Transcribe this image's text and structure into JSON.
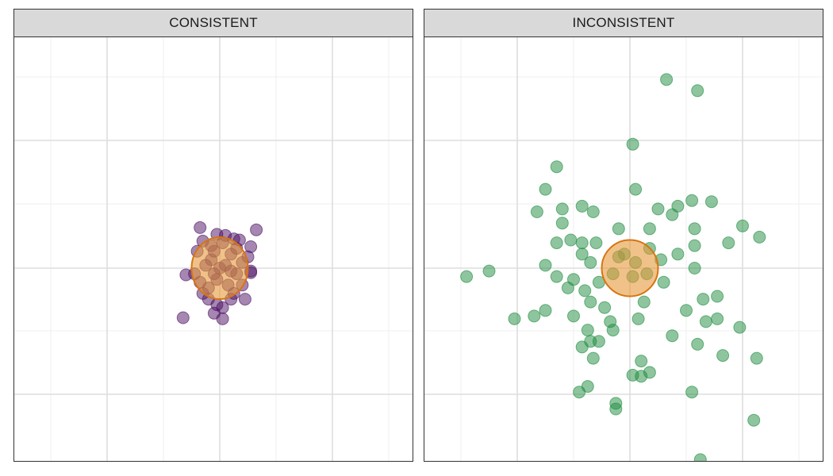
{
  "facets": [
    {
      "label": "CONSISTENT"
    },
    {
      "label": "INCONSISTENT"
    }
  ],
  "colors": {
    "consistent_points": "#4b0f63",
    "inconsistent_points": "#1e8c3e",
    "ellipse_fill": "#e69a3a",
    "ellipse_stroke": "#d67512",
    "grid_major": "#dddddd",
    "grid_minor": "#efefef",
    "strip_background": "#d9d9d9"
  },
  "chart_data": [
    {
      "type": "scatter",
      "facet": "CONSISTENT",
      "title": "",
      "xlabel": "",
      "ylabel": "",
      "xlim": [
        -2.8,
        4.3
      ],
      "ylim": [
        -3.4,
        3.3
      ],
      "grid": true,
      "point_color": "#4b0f63",
      "ellipse": {
        "cx": 0.0,
        "cy": 0.0,
        "rx": 0.5,
        "ry": 0.55
      },
      "points": [
        [
          -0.35,
          0.72
        ],
        [
          0.65,
          0.68
        ],
        [
          -0.3,
          0.48
        ],
        [
          0.25,
          0.52
        ],
        [
          -0.05,
          0.6
        ],
        [
          0.1,
          0.58
        ],
        [
          0.35,
          0.5
        ],
        [
          0.55,
          0.38
        ],
        [
          0.5,
          0.2
        ],
        [
          0.55,
          -0.05
        ],
        [
          0.55,
          -0.08
        ],
        [
          -0.6,
          -0.12
        ],
        [
          -0.45,
          -0.1
        ],
        [
          -0.1,
          0.3
        ],
        [
          0.05,
          0.45
        ],
        [
          -0.15,
          0.15
        ],
        [
          0.2,
          0.25
        ],
        [
          0.1,
          0.05
        ],
        [
          -0.25,
          0.05
        ],
        [
          0.3,
          -0.1
        ],
        [
          -0.05,
          -0.2
        ],
        [
          0.15,
          -0.3
        ],
        [
          0.4,
          -0.3
        ],
        [
          -0.2,
          -0.35
        ],
        [
          0.25,
          -0.45
        ],
        [
          -0.2,
          -0.55
        ],
        [
          0.2,
          -0.55
        ],
        [
          0.45,
          -0.55
        ],
        [
          -0.05,
          -0.65
        ],
        [
          0.05,
          -0.7
        ],
        [
          -0.1,
          -0.8
        ],
        [
          0.05,
          -0.9
        ],
        [
          -0.65,
          -0.88
        ],
        [
          -0.35,
          -0.25
        ],
        [
          -0.15,
          0.4
        ],
        [
          0.4,
          0.1
        ],
        [
          -0.4,
          0.3
        ],
        [
          0.0,
          0.0
        ],
        [
          0.2,
          -0.05
        ],
        [
          -0.1,
          -0.1
        ],
        [
          0.3,
          0.35
        ],
        [
          -0.3,
          -0.45
        ]
      ]
    },
    {
      "type": "scatter",
      "facet": "INCONSISTENT",
      "title": "",
      "xlabel": "",
      "ylabel": "",
      "xlim": [
        -3.0,
        3.5
      ],
      "ylim": [
        -3.4,
        3.3
      ],
      "grid": true,
      "point_color": "#1e8c3e",
      "ellipse": {
        "cx": 0.0,
        "cy": 0.0,
        "rx": 0.5,
        "ry": 0.5
      },
      "points": [
        [
          0.65,
          3.35
        ],
        [
          1.2,
          3.15
        ],
        [
          0.05,
          2.2
        ],
        [
          -1.3,
          1.8
        ],
        [
          -1.5,
          1.4
        ],
        [
          0.1,
          1.4
        ],
        [
          1.1,
          1.2
        ],
        [
          1.45,
          1.18
        ],
        [
          -0.85,
          1.1
        ],
        [
          -1.2,
          1.05
        ],
        [
          -1.65,
          1.0
        ],
        [
          -0.65,
          1.0
        ],
        [
          0.5,
          1.05
        ],
        [
          0.75,
          0.95
        ],
        [
          2.0,
          0.75
        ],
        [
          0.85,
          1.1
        ],
        [
          -1.2,
          0.8
        ],
        [
          -0.2,
          0.7
        ],
        [
          0.35,
          0.7
        ],
        [
          1.15,
          0.7
        ],
        [
          2.3,
          0.55
        ],
        [
          -1.3,
          0.45
        ],
        [
          -1.05,
          0.5
        ],
        [
          -0.85,
          0.45
        ],
        [
          -0.6,
          0.45
        ],
        [
          1.75,
          0.45
        ],
        [
          1.15,
          0.4
        ],
        [
          -0.85,
          0.25
        ],
        [
          0.35,
          0.35
        ],
        [
          0.85,
          0.25
        ],
        [
          -1.5,
          0.05
        ],
        [
          -1.3,
          -0.15
        ],
        [
          -0.7,
          0.1
        ],
        [
          0.55,
          0.15
        ],
        [
          1.15,
          0.0
        ],
        [
          -2.9,
          -0.15
        ],
        [
          -2.5,
          -0.05
        ],
        [
          -1.0,
          -0.2
        ],
        [
          -0.55,
          -0.25
        ],
        [
          0.6,
          -0.25
        ],
        [
          -1.1,
          -0.35
        ],
        [
          -0.8,
          -0.4
        ],
        [
          1.3,
          -0.55
        ],
        [
          1.55,
          -0.5
        ],
        [
          -0.7,
          -0.6
        ],
        [
          0.25,
          -0.6
        ],
        [
          -0.45,
          -0.7
        ],
        [
          1.0,
          -0.75
        ],
        [
          -1.5,
          -0.75
        ],
        [
          -2.05,
          -0.9
        ],
        [
          -1.7,
          -0.85
        ],
        [
          -1.0,
          -0.85
        ],
        [
          -0.35,
          -0.95
        ],
        [
          0.15,
          -0.9
        ],
        [
          1.35,
          -0.95
        ],
        [
          1.55,
          -0.9
        ],
        [
          -0.3,
          -1.1
        ],
        [
          -0.75,
          -1.1
        ],
        [
          1.95,
          -1.05
        ],
        [
          0.75,
          -1.2
        ],
        [
          -0.7,
          -1.3
        ],
        [
          -0.55,
          -1.3
        ],
        [
          1.2,
          -1.35
        ],
        [
          -0.85,
          -1.4
        ],
        [
          -0.65,
          -1.6
        ],
        [
          2.25,
          -1.6
        ],
        [
          0.2,
          -1.65
        ],
        [
          1.65,
          -1.55
        ],
        [
          0.05,
          -1.9
        ],
        [
          0.35,
          -1.85
        ],
        [
          0.2,
          -1.92
        ],
        [
          -0.9,
          -2.2
        ],
        [
          -0.75,
          -2.1
        ],
        [
          1.1,
          -2.2
        ],
        [
          -0.25,
          -2.4
        ],
        [
          -0.25,
          -2.5
        ],
        [
          2.2,
          -2.7
        ],
        [
          1.25,
          -3.4
        ],
        [
          -0.3,
          -0.1
        ],
        [
          0.1,
          0.1
        ],
        [
          -0.2,
          0.2
        ],
        [
          0.3,
          -0.1
        ],
        [
          0.05,
          -0.15
        ],
        [
          -0.1,
          0.25
        ]
      ]
    }
  ]
}
